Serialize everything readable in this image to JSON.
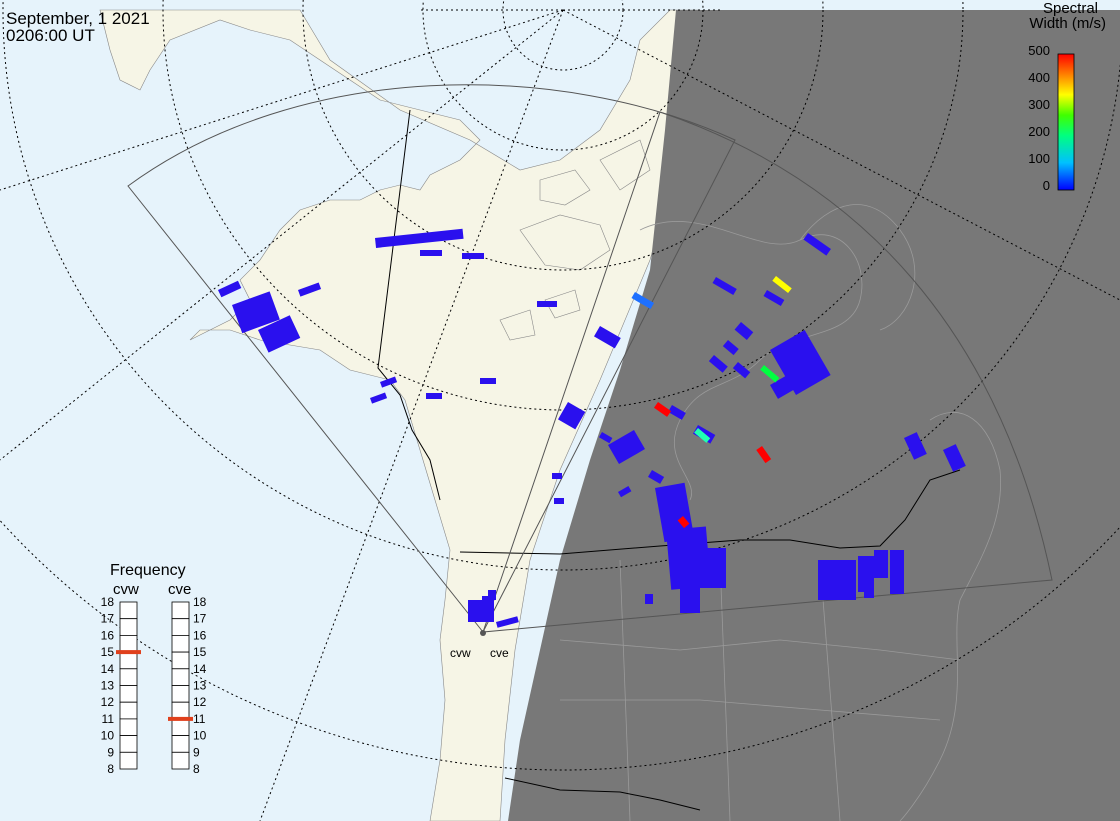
{
  "title": {
    "date": "September, 1 2021",
    "time": "0206:00 UT"
  },
  "colorbar": {
    "title_line1": "Spectral",
    "title_line2": "Width (m/s)",
    "ticks": [
      "500",
      "400",
      "300",
      "200",
      "100",
      "0"
    ],
    "range": [
      0,
      500
    ],
    "colors": [
      "#0000ff",
      "#00c0ff",
      "#00ff80",
      "#40ff00",
      "#ffff00",
      "#ff8000",
      "#ff0000"
    ]
  },
  "radars": {
    "labels": [
      "cvw",
      "cve"
    ]
  },
  "frequency_panel": {
    "title": "Frequency",
    "radar_left": "cvw",
    "radar_right": "cve",
    "ticks": [
      "18",
      "17",
      "16",
      "15",
      "14",
      "13",
      "12",
      "11",
      "10",
      "9",
      "8"
    ],
    "cvw_value": 15,
    "cve_value": 11,
    "marker_color": "#e0401c"
  },
  "colors": {
    "ocean": "#e6f3fb",
    "land": "#f6f5e6",
    "night": "#787878",
    "scatter_main": "#2a10ee"
  }
}
